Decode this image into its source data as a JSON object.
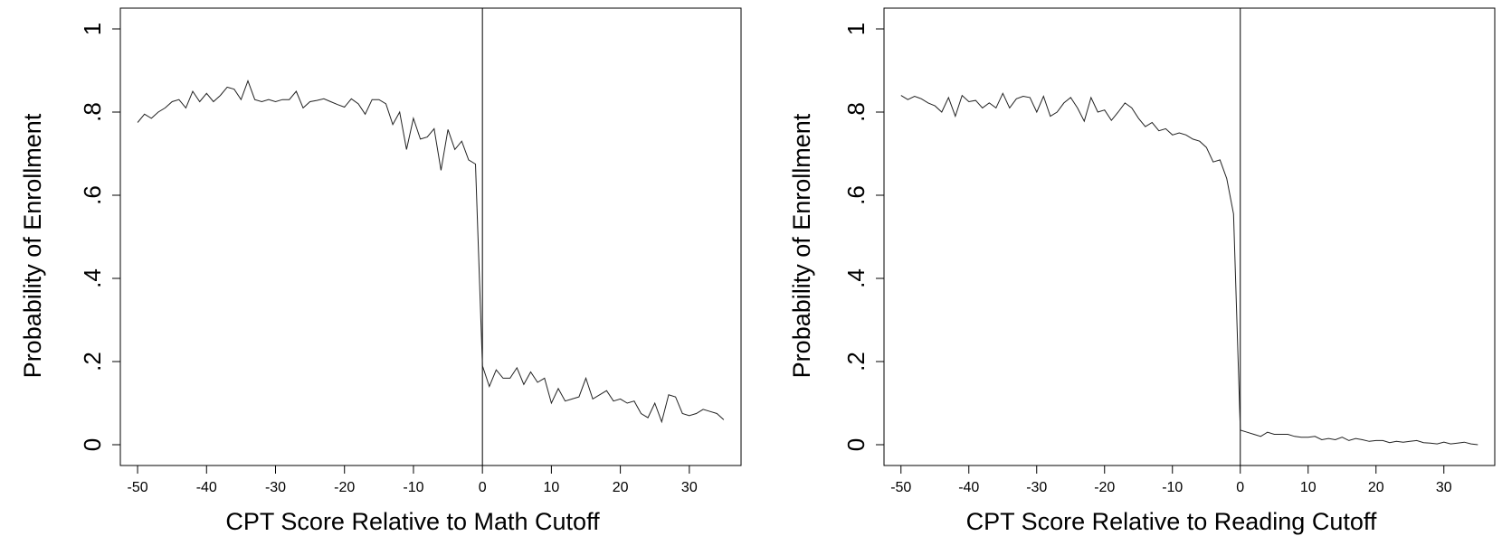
{
  "chart_data": [
    {
      "type": "line",
      "xlabel": "CPT Score Relative to Math Cutoff",
      "ylabel": "Probability of Enrollment",
      "xlim": [
        -52.5,
        37.5
      ],
      "ylim": [
        -0.05,
        1.05
      ],
      "xticks": [
        -50,
        -40,
        -30,
        -20,
        -10,
        0,
        10,
        20,
        30
      ],
      "yticks": [
        0,
        0.2,
        0.4,
        0.6,
        0.8,
        1
      ],
      "ytick_labels": [
        "0",
        ".2",
        ".4",
        ".6",
        ".8",
        "1"
      ],
      "cutoff": 0,
      "grid": false,
      "series": [
        {
          "x": [
            -50,
            -49,
            -48,
            -47,
            -46,
            -45,
            -44,
            -43,
            -42,
            -41,
            -40,
            -39,
            -38,
            -37,
            -36,
            -35,
            -34,
            -33,
            -32,
            -31,
            -30,
            -29,
            -28,
            -27,
            -26,
            -25,
            -24,
            -23,
            -22,
            -21,
            -20,
            -19,
            -18,
            -17,
            -16,
            -15,
            -14,
            -13,
            -12,
            -11,
            -10,
            -9,
            -8,
            -7,
            -6,
            -5,
            -4,
            -3,
            -2,
            -1
          ],
          "y": [
            0.775,
            0.795,
            0.785,
            0.8,
            0.81,
            0.825,
            0.83,
            0.81,
            0.85,
            0.825,
            0.845,
            0.825,
            0.84,
            0.86,
            0.855,
            0.83,
            0.875,
            0.83,
            0.825,
            0.83,
            0.825,
            0.83,
            0.83,
            0.85,
            0.81,
            0.825,
            0.828,
            0.832,
            0.825,
            0.818,
            0.812,
            0.832,
            0.82,
            0.795,
            0.83,
            0.83,
            0.82,
            0.77,
            0.8,
            0.71,
            0.785,
            0.735,
            0.74,
            0.76,
            0.66,
            0.758,
            0.71,
            0.73,
            0.685,
            0.675
          ]
        },
        {
          "x": [
            0,
            1,
            2,
            3,
            4,
            5,
            6,
            7,
            8,
            9,
            10,
            11,
            12,
            13,
            14,
            15,
            16,
            17,
            18,
            19,
            20,
            21,
            22,
            23,
            24,
            25,
            26,
            27,
            28,
            29,
            30,
            31,
            32,
            33,
            34,
            35
          ],
          "y": [
            0.19,
            0.14,
            0.18,
            0.16,
            0.16,
            0.185,
            0.145,
            0.175,
            0.15,
            0.16,
            0.1,
            0.135,
            0.105,
            0.11,
            0.115,
            0.16,
            0.11,
            0.12,
            0.13,
            0.105,
            0.11,
            0.1,
            0.105,
            0.075,
            0.065,
            0.1,
            0.055,
            0.12,
            0.115,
            0.075,
            0.07,
            0.075,
            0.085,
            0.08,
            0.075,
            0.06
          ]
        }
      ]
    },
    {
      "type": "line",
      "xlabel": "CPT Score Relative to Reading Cutoff",
      "ylabel": "Probability of Enrollment",
      "xlim": [
        -52.5,
        37.5
      ],
      "ylim": [
        -0.05,
        1.05
      ],
      "xticks": [
        -50,
        -40,
        -30,
        -20,
        -10,
        0,
        10,
        20,
        30
      ],
      "yticks": [
        0,
        0.2,
        0.4,
        0.6,
        0.8,
        1
      ],
      "ytick_labels": [
        "0",
        ".2",
        ".4",
        ".6",
        ".8",
        "1"
      ],
      "cutoff": 0,
      "grid": false,
      "series": [
        {
          "x": [
            -50,
            -49,
            -48,
            -47,
            -46,
            -45,
            -44,
            -43,
            -42,
            -41,
            -40,
            -39,
            -38,
            -37,
            -36,
            -35,
            -34,
            -33,
            -32,
            -31,
            -30,
            -29,
            -28,
            -27,
            -26,
            -25,
            -24,
            -23,
            -22,
            -21,
            -20,
            -19,
            -18,
            -17,
            -16,
            -15,
            -14,
            -13,
            -12,
            -11,
            -10,
            -9,
            -8,
            -7,
            -6,
            -5,
            -4,
            -3,
            -2,
            -1
          ],
          "y": [
            0.84,
            0.83,
            0.838,
            0.832,
            0.822,
            0.815,
            0.8,
            0.835,
            0.79,
            0.84,
            0.825,
            0.828,
            0.81,
            0.822,
            0.81,
            0.845,
            0.81,
            0.832,
            0.838,
            0.835,
            0.8,
            0.838,
            0.79,
            0.8,
            0.822,
            0.835,
            0.81,
            0.778,
            0.835,
            0.8,
            0.805,
            0.78,
            0.8,
            0.822,
            0.81,
            0.785,
            0.765,
            0.775,
            0.755,
            0.76,
            0.745,
            0.75,
            0.745,
            0.735,
            0.73,
            0.715,
            0.68,
            0.685,
            0.64,
            0.555
          ]
        },
        {
          "x": [
            0,
            1,
            2,
            3,
            4,
            5,
            6,
            7,
            8,
            9,
            10,
            11,
            12,
            13,
            14,
            15,
            16,
            17,
            18,
            19,
            20,
            21,
            22,
            23,
            24,
            25,
            26,
            27,
            28,
            29,
            30,
            31,
            32,
            33,
            34,
            35
          ],
          "y": [
            0.035,
            0.03,
            0.025,
            0.02,
            0.03,
            0.025,
            0.025,
            0.025,
            0.02,
            0.018,
            0.018,
            0.02,
            0.012,
            0.015,
            0.012,
            0.018,
            0.01,
            0.015,
            0.012,
            0.008,
            0.01,
            0.01,
            0.005,
            0.008,
            0.006,
            0.008,
            0.01,
            0.005,
            0.004,
            0.002,
            0.006,
            0.002,
            0.004,
            0.006,
            0.002,
            0.0
          ]
        }
      ]
    }
  ]
}
